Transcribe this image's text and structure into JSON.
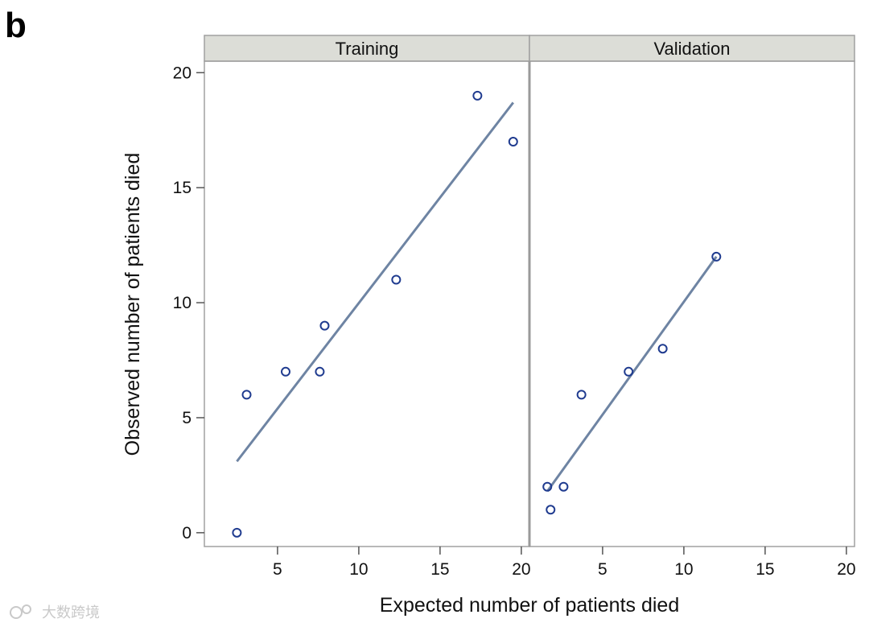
{
  "figure": {
    "panel_letter": "b",
    "watermark": "大数跨境"
  },
  "colors": {
    "line": "#6e84a3",
    "marker": "#1f3b8f",
    "strip": "#dcddd7",
    "frame": "#a0a0a0",
    "panel_divider": "#9a9a9a"
  },
  "chart_data": {
    "type": "scatter",
    "layout": "faceted",
    "xlabel": "Expected number of patients died",
    "ylabel": "Observed number of patients died",
    "xlim": [
      0.5,
      20.5
    ],
    "ylim": [
      -0.6,
      20.5
    ],
    "xticks": [
      5,
      10,
      15,
      20
    ],
    "yticks": [
      0,
      5,
      10,
      15,
      20
    ],
    "grid": false,
    "panels": [
      {
        "name": "Training",
        "points": [
          {
            "x": 2.5,
            "y": 0
          },
          {
            "x": 3.1,
            "y": 6
          },
          {
            "x": 5.5,
            "y": 7
          },
          {
            "x": 7.6,
            "y": 7
          },
          {
            "x": 7.9,
            "y": 9
          },
          {
            "x": 12.3,
            "y": 11
          },
          {
            "x": 17.3,
            "y": 19
          },
          {
            "x": 19.5,
            "y": 17
          }
        ],
        "fit_line": {
          "x": [
            2.5,
            19.5
          ],
          "y": [
            3.1,
            18.7
          ]
        }
      },
      {
        "name": "Validation",
        "points": [
          {
            "x": 1.6,
            "y": 2
          },
          {
            "x": 1.8,
            "y": 1
          },
          {
            "x": 2.6,
            "y": 2
          },
          {
            "x": 3.7,
            "y": 6
          },
          {
            "x": 6.6,
            "y": 7
          },
          {
            "x": 8.7,
            "y": 8
          },
          {
            "x": 12.0,
            "y": 12
          }
        ],
        "fit_line": {
          "x": [
            1.6,
            12.0
          ],
          "y": [
            1.8,
            12.0
          ]
        }
      }
    ]
  }
}
